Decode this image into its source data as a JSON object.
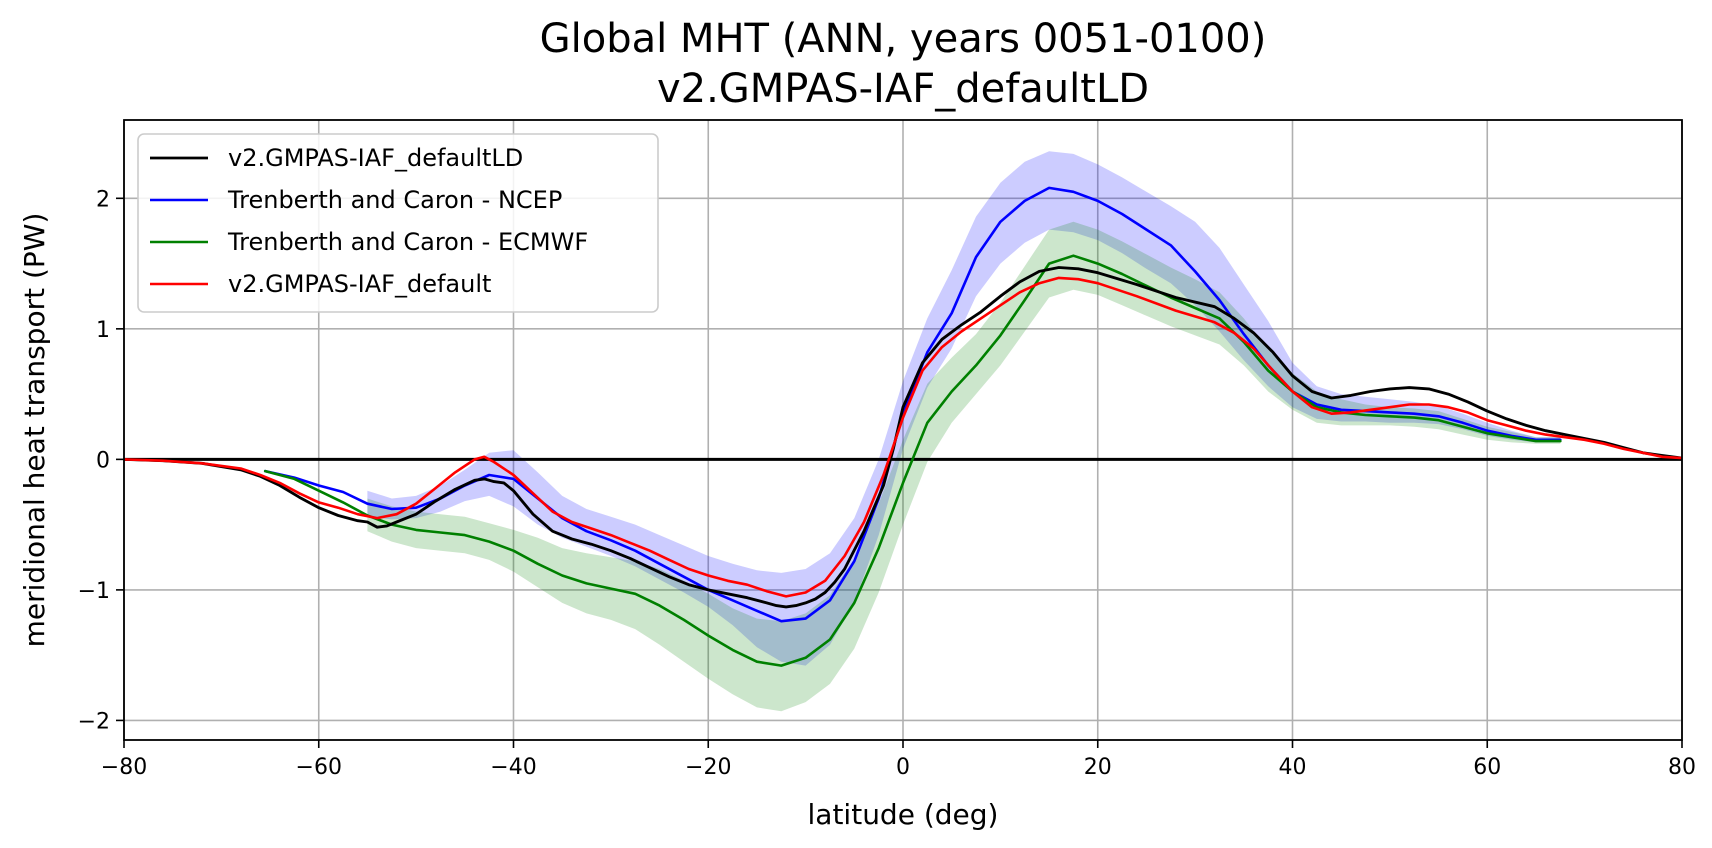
{
  "chart_data": {
    "type": "line",
    "title": "Global MHT (ANN, years 0051-0100)",
    "subtitle": "v2.GMPAS-IAF_defaultLD",
    "xlabel": "latitude (deg)",
    "ylabel": "meridional heat transport (PW)",
    "xlim": [
      -80,
      80
    ],
    "ylim": [
      -2.15,
      2.6
    ],
    "xticks": [
      -80,
      -60,
      -40,
      -20,
      0,
      20,
      40,
      60,
      80
    ],
    "xtick_labels": [
      "−80",
      "−60",
      "−40",
      "−20",
      "0",
      "20",
      "40",
      "60",
      "80"
    ],
    "yticks": [
      -2,
      -1,
      0,
      1,
      2
    ],
    "ytick_labels": [
      "−2",
      "−1",
      "0",
      "1",
      "2"
    ],
    "grid": true,
    "legend_position": "top-left",
    "zero_line": true,
    "series": [
      {
        "name": "v2.GMPAS-IAF_defaultLD",
        "color": "#000000",
        "width": 2.2,
        "x": [
          -80,
          -76,
          -72,
          -68,
          -66,
          -64,
          -62,
          -60,
          -58,
          -56,
          -55,
          -54,
          -53,
          -52,
          -50,
          -48,
          -46,
          -44,
          -43,
          -42,
          -41,
          -40,
          -38,
          -36,
          -35,
          -34,
          -32,
          -30,
          -28,
          -26,
          -24,
          -22,
          -20,
          -18,
          -16,
          -14,
          -13,
          -12,
          -11,
          -10,
          -9,
          -8,
          -7,
          -6,
          -4,
          -2,
          -1,
          0,
          2,
          4,
          6,
          8,
          10,
          12,
          14,
          16,
          18,
          20,
          24,
          28,
          32,
          34,
          36,
          38,
          40,
          42,
          44,
          46,
          48,
          50,
          52,
          54,
          56,
          58,
          60,
          62,
          64,
          66,
          68,
          70,
          72,
          74,
          76,
          78,
          80
        ],
        "y": [
          0,
          -0.01,
          -0.03,
          -0.08,
          -0.13,
          -0.2,
          -0.29,
          -0.37,
          -0.43,
          -0.47,
          -0.48,
          -0.52,
          -0.51,
          -0.48,
          -0.42,
          -0.32,
          -0.23,
          -0.16,
          -0.15,
          -0.17,
          -0.18,
          -0.24,
          -0.42,
          -0.55,
          -0.58,
          -0.61,
          -0.65,
          -0.7,
          -0.76,
          -0.83,
          -0.9,
          -0.96,
          -1.0,
          -1.03,
          -1.06,
          -1.1,
          -1.12,
          -1.13,
          -1.12,
          -1.1,
          -1.07,
          -1.02,
          -0.94,
          -0.84,
          -0.55,
          -0.2,
          0.08,
          0.4,
          0.74,
          0.92,
          1.03,
          1.13,
          1.25,
          1.36,
          1.44,
          1.47,
          1.46,
          1.43,
          1.34,
          1.24,
          1.17,
          1.08,
          0.97,
          0.82,
          0.64,
          0.52,
          0.47,
          0.49,
          0.52,
          0.54,
          0.55,
          0.54,
          0.5,
          0.44,
          0.37,
          0.31,
          0.26,
          0.22,
          0.19,
          0.16,
          0.13,
          0.09,
          0.05,
          0.03,
          0.01
        ]
      },
      {
        "name": "Trenberth and Caron - NCEP",
        "color": "#0000ff",
        "width": 2,
        "x": [
          -65.5,
          -62.5,
          -60,
          -57.5,
          -55,
          -52.5,
          -50,
          -47.5,
          -45,
          -42.5,
          -40,
          -37.5,
          -35,
          -32.5,
          -30,
          -27.5,
          -25,
          -22.5,
          -20,
          -17.5,
          -15,
          -12.5,
          -10,
          -7.5,
          -5,
          -2.5,
          0,
          2.5,
          5,
          7.5,
          10,
          12.5,
          15,
          17.5,
          20,
          22.5,
          25,
          27.5,
          30,
          32.5,
          35,
          37.5,
          40,
          42.5,
          45,
          47.5,
          50,
          52.5,
          55,
          57.5,
          60,
          62.5,
          65,
          67.5
        ],
        "y": [
          -0.09,
          -0.14,
          -0.2,
          -0.25,
          -0.34,
          -0.38,
          -0.37,
          -0.3,
          -0.2,
          -0.12,
          -0.15,
          -0.3,
          -0.45,
          -0.55,
          -0.62,
          -0.7,
          -0.8,
          -0.9,
          -1.0,
          -1.08,
          -1.16,
          -1.24,
          -1.22,
          -1.08,
          -0.78,
          -0.3,
          0.35,
          0.82,
          1.12,
          1.55,
          1.82,
          1.98,
          2.08,
          2.05,
          1.98,
          1.88,
          1.76,
          1.64,
          1.44,
          1.22,
          0.96,
          0.72,
          0.52,
          0.42,
          0.38,
          0.37,
          0.36,
          0.35,
          0.33,
          0.28,
          0.22,
          0.18,
          0.15,
          0.15
        ]
      },
      {
        "name": "Trenberth and Caron - ECMWF",
        "color": "#008000",
        "width": 2,
        "x": [
          -65.5,
          -62.5,
          -60,
          -57.5,
          -55,
          -52.5,
          -50,
          -47.5,
          -45,
          -42.5,
          -40,
          -37.5,
          -35,
          -32.5,
          -30,
          -27.5,
          -25,
          -22.5,
          -20,
          -17.5,
          -15,
          -12.5,
          -10,
          -7.5,
          -5,
          -2.5,
          0,
          2.5,
          5,
          7.5,
          10,
          12.5,
          15,
          17.5,
          20,
          22.5,
          25,
          27.5,
          30,
          32.5,
          35,
          37.5,
          40,
          42.5,
          45,
          47.5,
          50,
          52.5,
          55,
          57.5,
          60,
          62.5,
          65,
          67.5
        ],
        "y": [
          -0.09,
          -0.15,
          -0.24,
          -0.33,
          -0.43,
          -0.5,
          -0.54,
          -0.56,
          -0.58,
          -0.63,
          -0.7,
          -0.8,
          -0.89,
          -0.95,
          -0.99,
          -1.03,
          -1.12,
          -1.23,
          -1.35,
          -1.46,
          -1.55,
          -1.58,
          -1.52,
          -1.38,
          -1.1,
          -0.68,
          -0.18,
          0.28,
          0.52,
          0.72,
          0.95,
          1.22,
          1.5,
          1.56,
          1.5,
          1.42,
          1.33,
          1.24,
          1.16,
          1.08,
          0.9,
          0.68,
          0.52,
          0.4,
          0.36,
          0.34,
          0.33,
          0.32,
          0.3,
          0.25,
          0.2,
          0.17,
          0.14,
          0.14
        ]
      },
      {
        "name": "v2.GMPAS-IAF_default",
        "color": "#ff0000",
        "width": 2,
        "x": [
          -80,
          -76,
          -72,
          -68,
          -66,
          -64,
          -62,
          -60,
          -58,
          -56,
          -54,
          -52,
          -50,
          -48,
          -46,
          -44,
          -43,
          -42,
          -40,
          -38,
          -36,
          -34,
          -32,
          -30,
          -28,
          -26,
          -24,
          -22,
          -20,
          -18,
          -16,
          -14,
          -12,
          -10,
          -8,
          -6,
          -4,
          -2,
          0,
          2,
          4,
          6,
          8,
          10,
          12,
          14,
          16,
          18,
          20,
          24,
          28,
          32,
          34,
          36,
          38,
          40,
          42,
          44,
          46,
          48,
          50,
          52,
          54,
          56,
          58,
          60,
          62,
          64,
          66,
          68,
          70,
          72,
          74,
          76,
          78,
          80
        ],
        "y": [
          0,
          -0.01,
          -0.03,
          -0.07,
          -0.12,
          -0.18,
          -0.26,
          -0.33,
          -0.37,
          -0.42,
          -0.45,
          -0.42,
          -0.34,
          -0.22,
          -0.1,
          0.0,
          0.02,
          -0.02,
          -0.12,
          -0.26,
          -0.4,
          -0.48,
          -0.53,
          -0.58,
          -0.64,
          -0.7,
          -0.77,
          -0.84,
          -0.89,
          -0.93,
          -0.96,
          -1.01,
          -1.05,
          -1.02,
          -0.93,
          -0.74,
          -0.48,
          -0.12,
          0.32,
          0.68,
          0.86,
          0.98,
          1.08,
          1.18,
          1.28,
          1.35,
          1.39,
          1.38,
          1.35,
          1.25,
          1.14,
          1.05,
          0.97,
          0.85,
          0.68,
          0.52,
          0.4,
          0.35,
          0.36,
          0.38,
          0.4,
          0.42,
          0.42,
          0.4,
          0.36,
          0.3,
          0.26,
          0.22,
          0.19,
          0.17,
          0.15,
          0.12,
          0.08,
          0.05,
          0.02,
          0.01
        ]
      }
    ],
    "bands": [
      {
        "series": "Trenberth and Caron - NCEP",
        "color": "#0000ff",
        "opacity": 0.2,
        "x": [
          -55,
          -52.5,
          -50,
          -47.5,
          -45,
          -42.5,
          -40,
          -37.5,
          -35,
          -32.5,
          -30,
          -27.5,
          -25,
          -22.5,
          -20,
          -17.5,
          -15,
          -12.5,
          -10,
          -7.5,
          -5,
          -2.5,
          0,
          2.5,
          5,
          7.5,
          10,
          12.5,
          15,
          17.5,
          20,
          22.5,
          25,
          27.5,
          30,
          32.5,
          35,
          37.5,
          40,
          42.5,
          45,
          47.5,
          50,
          52.5,
          55,
          57.5,
          60,
          62.5,
          65,
          67.5
        ],
        "lower": [
          -0.44,
          -0.46,
          -0.45,
          -0.4,
          -0.32,
          -0.28,
          -0.36,
          -0.5,
          -0.6,
          -0.67,
          -0.74,
          -0.82,
          -0.92,
          -1.02,
          -1.13,
          -1.27,
          -1.44,
          -1.55,
          -1.58,
          -1.42,
          -1.1,
          -0.58,
          0.08,
          0.55,
          0.85,
          1.25,
          1.5,
          1.66,
          1.76,
          1.74,
          1.68,
          1.58,
          1.46,
          1.35,
          1.18,
          0.98,
          0.76,
          0.56,
          0.4,
          0.31,
          0.29,
          0.29,
          0.28,
          0.28,
          0.27,
          0.23,
          0.18,
          0.15,
          0.13,
          0.13
        ],
        "upper": [
          -0.24,
          -0.3,
          -0.28,
          -0.2,
          -0.08,
          0.05,
          0.07,
          -0.1,
          -0.28,
          -0.38,
          -0.44,
          -0.5,
          -0.58,
          -0.66,
          -0.74,
          -0.8,
          -0.85,
          -0.87,
          -0.84,
          -0.72,
          -0.45,
          0.0,
          0.6,
          1.08,
          1.45,
          1.86,
          2.12,
          2.28,
          2.36,
          2.34,
          2.26,
          2.16,
          2.05,
          1.94,
          1.82,
          1.62,
          1.34,
          1.06,
          0.74,
          0.56,
          0.5,
          0.48,
          0.46,
          0.44,
          0.41,
          0.35,
          0.28,
          0.22,
          0.17,
          0.17
        ]
      },
      {
        "series": "Trenberth and Caron - ECMWF",
        "color": "#008000",
        "opacity": 0.2,
        "x": [
          -55,
          -52.5,
          -50,
          -47.5,
          -45,
          -42.5,
          -40,
          -37.5,
          -35,
          -32.5,
          -30,
          -27.5,
          -25,
          -22.5,
          -20,
          -17.5,
          -15,
          -12.5,
          -10,
          -7.5,
          -5,
          -2.5,
          0,
          2.5,
          5,
          7.5,
          10,
          12.5,
          15,
          17.5,
          20,
          22.5,
          25,
          27.5,
          30,
          32.5,
          35,
          37.5,
          40,
          42.5,
          45,
          47.5,
          50,
          52.5,
          55,
          57.5,
          60,
          62.5,
          65,
          67.5
        ],
        "lower": [
          -0.55,
          -0.63,
          -0.68,
          -0.7,
          -0.72,
          -0.77,
          -0.86,
          -0.98,
          -1.1,
          -1.18,
          -1.23,
          -1.3,
          -1.42,
          -1.55,
          -1.68,
          -1.8,
          -1.9,
          -1.93,
          -1.86,
          -1.72,
          -1.45,
          -1.02,
          -0.5,
          -0.02,
          0.28,
          0.5,
          0.72,
          0.98,
          1.24,
          1.3,
          1.26,
          1.18,
          1.1,
          1.02,
          0.95,
          0.88,
          0.72,
          0.52,
          0.38,
          0.28,
          0.26,
          0.26,
          0.26,
          0.25,
          0.23,
          0.19,
          0.15,
          0.13,
          0.12,
          0.12
        ],
        "upper": [
          -0.3,
          -0.36,
          -0.4,
          -0.42,
          -0.44,
          -0.49,
          -0.54,
          -0.6,
          -0.68,
          -0.72,
          -0.75,
          -0.78,
          -0.84,
          -0.93,
          -1.03,
          -1.14,
          -1.22,
          -1.24,
          -1.18,
          -1.04,
          -0.76,
          -0.34,
          0.15,
          0.58,
          0.78,
          0.96,
          1.2,
          1.48,
          1.76,
          1.82,
          1.76,
          1.67,
          1.57,
          1.47,
          1.38,
          1.28,
          1.08,
          0.84,
          0.66,
          0.52,
          0.46,
          0.42,
          0.4,
          0.39,
          0.37,
          0.31,
          0.25,
          0.21,
          0.17,
          0.17
        ]
      }
    ]
  }
}
